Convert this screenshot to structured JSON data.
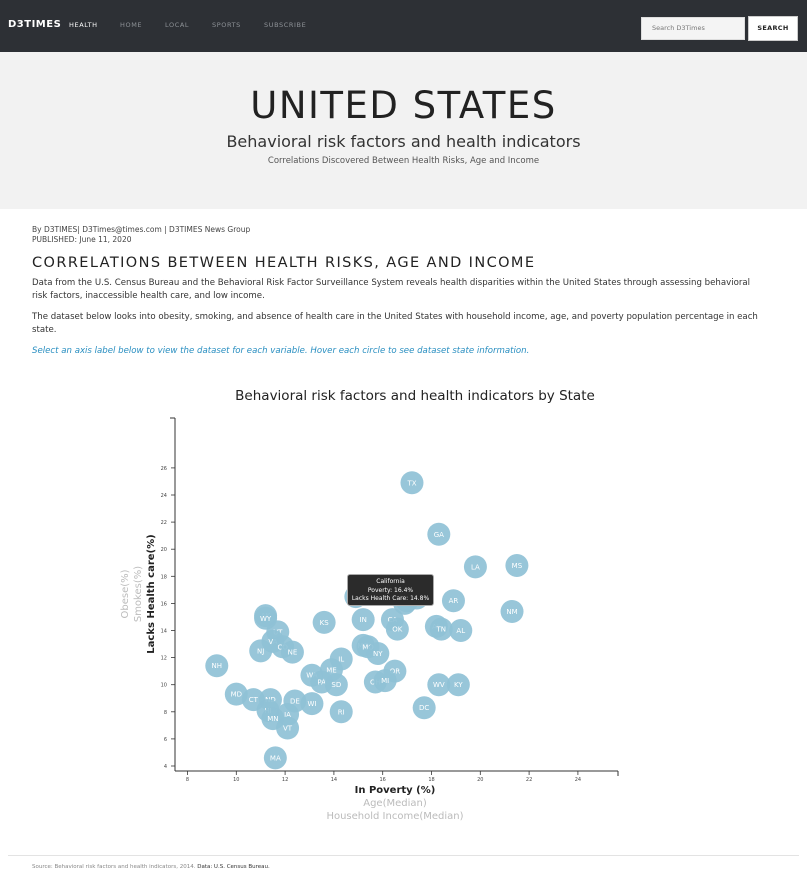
{
  "nav": {
    "brand": "D3TIMES",
    "links": [
      "HEALTH",
      "HOME",
      "LOCAL",
      "SPORTS",
      "SUBSCRIBE"
    ],
    "search_placeholder": "Search D3Times",
    "search_button": "SEARCH"
  },
  "hero": {
    "title": "UNITED STATES",
    "subtitle": "Behavioral risk factors and health indicators",
    "tagline": "Correlations Discovered Between Health Risks, Age and Income"
  },
  "article": {
    "byline": "By D3TIMES| D3Times@times.com | D3TIMES News Group",
    "published": "PUBLISHED: June 11, 2020",
    "heading": "CORRELATIONS BETWEEN HEALTH RISKS, AGE AND INCOME",
    "para1_line1": "Data from the U.S. Census Bureau and the Behavioral Risk Factor Surveillance System reveals health disparities within the United States through assessing behavioral",
    "para1_line2": "risk factors, inaccessible health care, and low income.",
    "para2_line1": "The dataset below looks into obesity, smoking, and absence of health care in the United States with household income, age, and poverty population percentage in each",
    "para2_line2": "state.",
    "instructions": "Select an axis label below to view the dataset for each variable. Hover each circle to see dataset state information."
  },
  "tooltip": {
    "state": "California",
    "poverty": "Poverty: 16.4%",
    "healthcare": "Lacks Health Care: 14.8%"
  },
  "footer": {
    "source": "Source: Behavioral risk factors and health indicators, 2014.",
    "data_label": "Data: U.S. Census Bureau."
  },
  "chart_data": {
    "type": "scatter",
    "title": "Behavioral risk factors and health indicators by State",
    "xlim": [
      8,
      24
    ],
    "ylim": [
      4,
      26
    ],
    "x_ticks": [
      8,
      10,
      12,
      14,
      16,
      18,
      20,
      22,
      24
    ],
    "y_ticks": [
      4,
      6,
      8,
      10,
      12,
      14,
      16,
      18,
      20,
      22,
      24,
      26
    ],
    "x_axis_labels": [
      {
        "label": "In Poverty (%)",
        "active": true
      },
      {
        "label": "Age(Median)",
        "active": false
      },
      {
        "label": "Household Income(Median)",
        "active": false
      }
    ],
    "y_axis_labels": [
      {
        "label": "Lacks Health care(%)",
        "active": true
      },
      {
        "label": "Smokes(%)",
        "active": false
      },
      {
        "label": "Obese(%)",
        "active": false
      }
    ],
    "point_color": "#8fc1d6",
    "points": [
      {
        "state": "TX",
        "x": 17.2,
        "y": 24.9
      },
      {
        "state": "GA",
        "x": 18.3,
        "y": 21.1
      },
      {
        "state": "LA",
        "x": 19.8,
        "y": 18.7
      },
      {
        "state": "MS",
        "x": 21.5,
        "y": 18.8
      },
      {
        "state": "FL",
        "x": 16.5,
        "y": 17.3
      },
      {
        "state": "SC",
        "x": 17.1,
        "y": 16.8
      },
      {
        "state": "AZ",
        "x": 17.4,
        "y": 16.4
      },
      {
        "state": "NV",
        "x": 14.9,
        "y": 16.5
      },
      {
        "state": "NC",
        "x": 16.9,
        "y": 16.0
      },
      {
        "state": "OK",
        "x": 17.0,
        "y": 16.2
      },
      {
        "state": "AR",
        "x": 18.9,
        "y": 16.2
      },
      {
        "state": "NM",
        "x": 21.3,
        "y": 15.4
      },
      {
        "state": "AK",
        "x": 11.2,
        "y": 15.1
      },
      {
        "state": "WY",
        "x": 11.2,
        "y": 14.9
      },
      {
        "state": "KS",
        "x": 13.6,
        "y": 14.6
      },
      {
        "state": "IN",
        "x": 15.2,
        "y": 14.8
      },
      {
        "state": "CA",
        "x": 16.4,
        "y": 14.8
      },
      {
        "state": "OK",
        "x": 16.6,
        "y": 14.1
      },
      {
        "state": "AL",
        "x": 18.2,
        "y": 14.3
      },
      {
        "state": "TN",
        "x": 18.4,
        "y": 14.1
      },
      {
        "state": "AL",
        "x": 19.2,
        "y": 14.0
      },
      {
        "state": "UT",
        "x": 11.7,
        "y": 13.9
      },
      {
        "state": "VA",
        "x": 11.5,
        "y": 13.2
      },
      {
        "state": "CO",
        "x": 11.9,
        "y": 12.8
      },
      {
        "state": "NJ",
        "x": 11.0,
        "y": 12.5
      },
      {
        "state": "NE",
        "x": 12.3,
        "y": 12.4
      },
      {
        "state": "MO",
        "x": 15.2,
        "y": 12.9
      },
      {
        "state": "MO",
        "x": 15.4,
        "y": 12.8
      },
      {
        "state": "NY",
        "x": 15.8,
        "y": 12.3
      },
      {
        "state": "IL",
        "x": 14.3,
        "y": 11.9
      },
      {
        "state": "NH",
        "x": 9.2,
        "y": 11.4
      },
      {
        "state": "OR",
        "x": 16.5,
        "y": 11.0
      },
      {
        "state": "WA",
        "x": 13.1,
        "y": 10.7
      },
      {
        "state": "ME",
        "x": 13.9,
        "y": 11.1
      },
      {
        "state": "PA",
        "x": 13.5,
        "y": 10.2
      },
      {
        "state": "SD",
        "x": 14.1,
        "y": 10.0
      },
      {
        "state": "OH",
        "x": 15.7,
        "y": 10.2
      },
      {
        "state": "MI",
        "x": 16.1,
        "y": 10.3
      },
      {
        "state": "WV",
        "x": 18.3,
        "y": 10.0
      },
      {
        "state": "KY",
        "x": 19.1,
        "y": 10.0
      },
      {
        "state": "MD",
        "x": 10.0,
        "y": 9.3
      },
      {
        "state": "CT",
        "x": 10.7,
        "y": 8.9
      },
      {
        "state": "ND",
        "x": 11.4,
        "y": 8.9
      },
      {
        "state": "DE",
        "x": 12.4,
        "y": 8.8
      },
      {
        "state": "WI",
        "x": 13.1,
        "y": 8.6
      },
      {
        "state": "HI",
        "x": 11.3,
        "y": 8.1
      },
      {
        "state": "IA",
        "x": 12.1,
        "y": 7.8
      },
      {
        "state": "RI",
        "x": 14.3,
        "y": 8.0
      },
      {
        "state": "DC",
        "x": 17.7,
        "y": 8.3
      },
      {
        "state": "MN",
        "x": 11.5,
        "y": 7.5
      },
      {
        "state": "VT",
        "x": 12.1,
        "y": 6.8
      },
      {
        "state": "MA",
        "x": 11.6,
        "y": 4.6
      }
    ]
  }
}
